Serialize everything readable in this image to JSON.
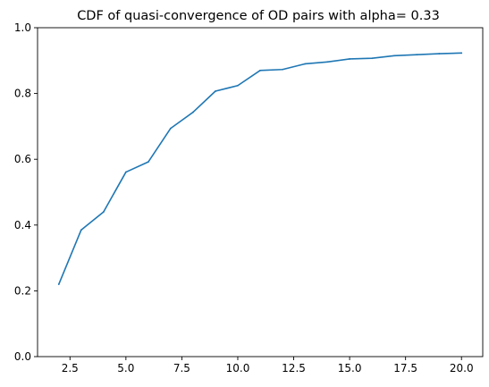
{
  "chart_data": {
    "type": "line",
    "title": "CDF of quasi-convergence of OD pairs with alpha= 0.33",
    "xlabel": "",
    "ylabel": "",
    "xlim": [
      1.05,
      20.95
    ],
    "ylim": [
      0.0,
      1.0
    ],
    "x_ticks": [
      2.5,
      5.0,
      7.5,
      10.0,
      12.5,
      15.0,
      17.5,
      20.0
    ],
    "x_tick_labels": [
      "2.5",
      "5.0",
      "7.5",
      "10.0",
      "12.5",
      "15.0",
      "17.5",
      "20.0"
    ],
    "y_ticks": [
      0.0,
      0.2,
      0.4,
      0.6,
      0.8,
      1.0
    ],
    "y_tick_labels": [
      "0.0",
      "0.2",
      "0.4",
      "0.6",
      "0.8",
      "1.0"
    ],
    "grid": false,
    "series": [
      {
        "color": "#1f77b4",
        "x": [
          2,
          3,
          4,
          5,
          6,
          7,
          8,
          9,
          10,
          11,
          12,
          13,
          14,
          15,
          16,
          17,
          18,
          19,
          20
        ],
        "y": [
          0.22,
          0.385,
          0.44,
          0.561,
          0.592,
          0.694,
          0.743,
          0.807,
          0.824,
          0.87,
          0.873,
          0.89,
          0.896,
          0.905,
          0.907,
          0.915,
          0.918,
          0.921,
          0.923
        ]
      }
    ]
  }
}
